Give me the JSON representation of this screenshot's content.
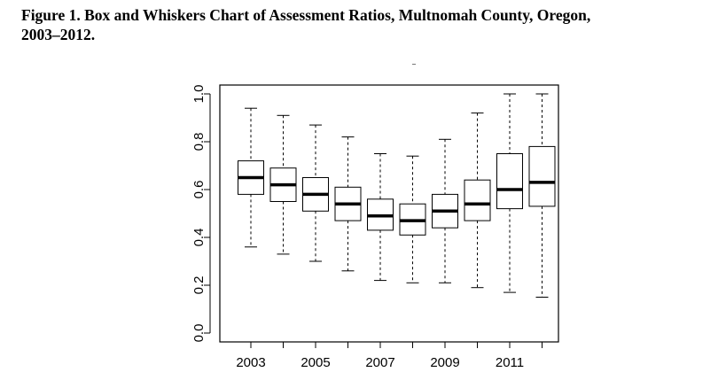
{
  "figure": {
    "title_line1": "Figure 1. Box and Whiskers Chart of Assessment Ratios, Multnomah County, Oregon,",
    "title_line2": "2003–2012."
  },
  "chart_data": {
    "type": "box",
    "title": "Figure 1. Box and Whiskers Chart of Assessment Ratios, Multnomah County, Oregon, 2003–2012.",
    "xlabel": "",
    "ylabel": "",
    "ylim": [
      0,
      1.0
    ],
    "y_ticks": [
      "0.0",
      "0.2",
      "0.4",
      "0.6",
      "0.8",
      "1.0"
    ],
    "x_ticks": [
      "2003",
      "2005",
      "2007",
      "2009",
      "2011"
    ],
    "categories": [
      "2003",
      "2004",
      "2005",
      "2006",
      "2007",
      "2008",
      "2009",
      "2010",
      "2011",
      "2012"
    ],
    "boxes": [
      {
        "year": "2003",
        "min": 0.36,
        "q1": 0.58,
        "median": 0.65,
        "q3": 0.72,
        "max": 0.94
      },
      {
        "year": "2004",
        "min": 0.33,
        "q1": 0.55,
        "median": 0.62,
        "q3": 0.69,
        "max": 0.91
      },
      {
        "year": "2005",
        "min": 0.3,
        "q1": 0.51,
        "median": 0.58,
        "q3": 0.65,
        "max": 0.87
      },
      {
        "year": "2006",
        "min": 0.26,
        "q1": 0.47,
        "median": 0.54,
        "q3": 0.61,
        "max": 0.82
      },
      {
        "year": "2007",
        "min": 0.22,
        "q1": 0.43,
        "median": 0.49,
        "q3": 0.56,
        "max": 0.75
      },
      {
        "year": "2008",
        "min": 0.21,
        "q1": 0.41,
        "median": 0.47,
        "q3": 0.54,
        "max": 0.74
      },
      {
        "year": "2009",
        "min": 0.21,
        "q1": 0.44,
        "median": 0.51,
        "q3": 0.58,
        "max": 0.81
      },
      {
        "year": "2010",
        "min": 0.19,
        "q1": 0.47,
        "median": 0.54,
        "q3": 0.64,
        "max": 0.92
      },
      {
        "year": "2011",
        "min": 0.17,
        "q1": 0.52,
        "median": 0.6,
        "q3": 0.75,
        "max": 1.0
      },
      {
        "year": "2012",
        "min": 0.15,
        "q1": 0.53,
        "median": 0.63,
        "q3": 0.78,
        "max": 1.0
      }
    ],
    "grid": false,
    "legend": "none",
    "colors": {
      "box_fill": "#ffffff",
      "stroke": "#000000",
      "median": "#000000"
    }
  }
}
